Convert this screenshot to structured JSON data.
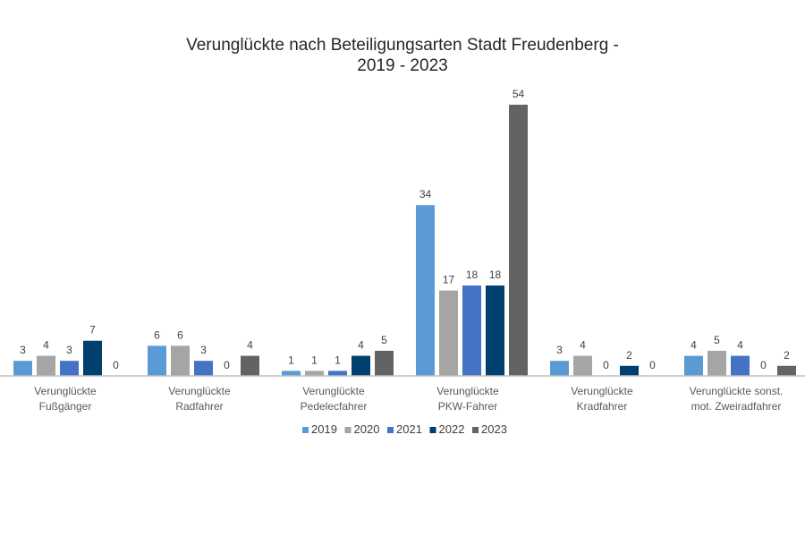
{
  "chart_data": {
    "type": "bar",
    "title_lines": [
      "Verunglückte nach Beteiligungsarten Stadt Freudenberg -",
      "2019 - 2023"
    ],
    "categories": [
      [
        "Verunglückte",
        "Fußgänger"
      ],
      [
        "Verunglückte",
        "Radfahrer"
      ],
      [
        "Verunglückte",
        "Pedelecfahrer"
      ],
      [
        "Verunglückte",
        "PKW-Fahrer"
      ],
      [
        "Verunglückte",
        "Kradfahrer"
      ],
      [
        "Verunglückte sonst.",
        "mot. Zweiradfahrer"
      ]
    ],
    "series": [
      {
        "name": "2019",
        "color": "#5B9BD5",
        "values": [
          3,
          6,
          1,
          34,
          3,
          4
        ]
      },
      {
        "name": "2020",
        "color": "#A5A5A5",
        "values": [
          4,
          6,
          1,
          17,
          4,
          5
        ]
      },
      {
        "name": "2021",
        "color": "#4472C4",
        "values": [
          3,
          3,
          1,
          18,
          0,
          4
        ]
      },
      {
        "name": "2022",
        "color": "#003F6E",
        "values": [
          7,
          0,
          4,
          18,
          2,
          0
        ]
      },
      {
        "name": "2023",
        "color": "#636363",
        "values": [
          0,
          4,
          5,
          54,
          0,
          2
        ]
      }
    ],
    "ylim": [
      0,
      54
    ],
    "xlabel": "",
    "ylabel": "",
    "grid": false,
    "legend": "bottom"
  }
}
